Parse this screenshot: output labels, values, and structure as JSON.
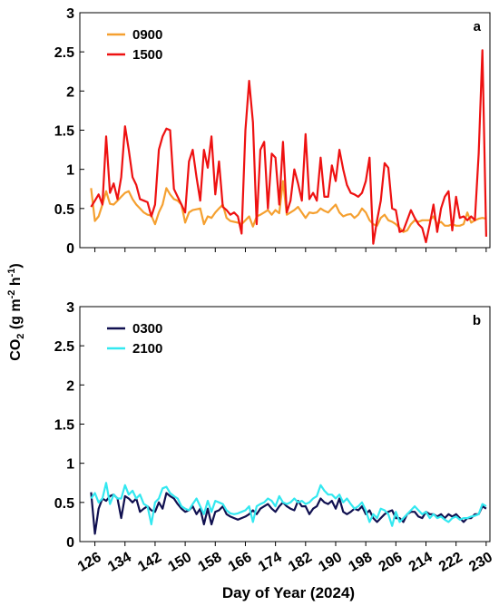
{
  "figure": {
    "ylabel_main": "CO",
    "ylabel_sub": "2",
    "ylabel_unit_open": " (g m",
    "ylabel_sup1": "-2",
    "ylabel_mid": " h",
    "ylabel_sup2": "-1",
    "ylabel_close": ")",
    "xlabel": "Day of Year (2024)"
  },
  "chart_data": [
    {
      "type": "line",
      "panel_label": "a",
      "xlim": [
        122,
        231
      ],
      "ylim": [
        0,
        3
      ],
      "yticks": [
        "0",
        "0.5",
        "1",
        "1.5",
        "2",
        "2.5",
        "3"
      ],
      "xticks": [
        126,
        134,
        142,
        150,
        158,
        166,
        174,
        182,
        190,
        198,
        206,
        214,
        222,
        230
      ],
      "legend_position": "top-left",
      "x": [
        125,
        126,
        127,
        128,
        129,
        130,
        131,
        132,
        133,
        134,
        135,
        136,
        137,
        138,
        139,
        140,
        141,
        142,
        143,
        144,
        145,
        146,
        147,
        148,
        149,
        150,
        151,
        152,
        153,
        154,
        155,
        156,
        157,
        158,
        159,
        160,
        161,
        162,
        163,
        164,
        165,
        166,
        167,
        168,
        169,
        170,
        171,
        172,
        173,
        174,
        175,
        176,
        177,
        178,
        179,
        180,
        181,
        182,
        183,
        184,
        185,
        186,
        187,
        188,
        189,
        190,
        191,
        192,
        193,
        194,
        195,
        196,
        197,
        198,
        199,
        200,
        201,
        202,
        203,
        204,
        205,
        206,
        207,
        208,
        209,
        210,
        211,
        212,
        213,
        214,
        215,
        216,
        217,
        218,
        219,
        220,
        221,
        222,
        223,
        224,
        225,
        226,
        227,
        228,
        229,
        230
      ],
      "series": [
        {
          "name": "0900",
          "color": "#f5a030",
          "values": [
            0.76,
            0.34,
            0.4,
            0.55,
            0.72,
            0.56,
            0.55,
            0.6,
            0.65,
            0.7,
            0.72,
            0.62,
            0.55,
            0.5,
            0.45,
            0.42,
            0.41,
            0.3,
            0.45,
            0.55,
            0.76,
            0.68,
            0.62,
            0.6,
            0.55,
            0.32,
            0.45,
            0.48,
            0.49,
            0.5,
            0.3,
            0.4,
            0.38,
            0.45,
            0.5,
            0.55,
            0.38,
            0.34,
            0.33,
            0.32,
            0.3,
            0.35,
            0.4,
            0.27,
            0.4,
            0.42,
            0.45,
            0.48,
            0.42,
            0.48,
            0.44,
            0.85,
            0.42,
            0.45,
            0.48,
            0.52,
            0.45,
            0.38,
            0.45,
            0.44,
            0.45,
            0.5,
            0.47,
            0.45,
            0.5,
            0.55,
            0.45,
            0.4,
            0.42,
            0.43,
            0.38,
            0.42,
            0.5,
            0.45,
            0.35,
            0.3,
            0.28,
            0.38,
            0.42,
            0.35,
            0.33,
            0.3,
            0.25,
            0.2,
            0.22,
            0.3,
            0.35,
            0.33,
            0.35,
            0.35,
            0.35,
            0.4,
            0.3,
            0.33,
            0.28,
            0.28,
            0.3,
            0.28,
            0.28,
            0.3,
            0.45,
            0.32,
            0.35,
            0.37,
            0.38,
            0.37
          ]
        },
        {
          "name": "1500",
          "color": "#ee1111",
          "values": [
            0.52,
            0.6,
            0.68,
            0.55,
            1.42,
            0.7,
            0.82,
            0.62,
            0.9,
            1.55,
            1.25,
            0.9,
            0.8,
            0.62,
            0.6,
            0.58,
            0.4,
            0.55,
            1.25,
            1.42,
            1.52,
            1.5,
            0.75,
            0.65,
            0.55,
            0.45,
            1.1,
            1.25,
            0.9,
            0.6,
            1.25,
            1.02,
            1.42,
            0.68,
            1.1,
            0.52,
            0.48,
            0.42,
            0.45,
            0.4,
            0.18,
            1.5,
            2.13,
            1.6,
            0.3,
            1.25,
            1.35,
            0.5,
            1.2,
            1.15,
            0.55,
            1.35,
            0.45,
            0.6,
            1.0,
            0.82,
            0.6,
            1.45,
            0.62,
            0.7,
            0.6,
            1.15,
            0.65,
            0.65,
            1.05,
            0.85,
            1.25,
            1.0,
            0.8,
            0.7,
            0.68,
            0.65,
            0.7,
            0.85,
            1.15,
            0.05,
            0.35,
            0.6,
            1.08,
            1.02,
            0.5,
            0.48,
            0.2,
            0.22,
            0.35,
            0.48,
            0.38,
            0.3,
            0.25,
            0.07,
            0.3,
            0.55,
            0.2,
            0.5,
            0.65,
            0.72,
            0.22,
            0.65,
            0.38,
            0.4,
            0.35,
            0.4,
            0.35,
            1.2,
            2.52,
            0.14
          ]
        }
      ]
    },
    {
      "type": "line",
      "panel_label": "b",
      "xlim": [
        122,
        231
      ],
      "ylim": [
        0,
        3
      ],
      "yticks": [
        "0",
        "0.5",
        "1",
        "1.5",
        "2",
        "2.5",
        "3"
      ],
      "xticks": [
        126,
        134,
        142,
        150,
        158,
        166,
        174,
        182,
        190,
        198,
        206,
        214,
        222,
        230
      ],
      "xticklabels": [
        "126",
        "134",
        "142",
        "150",
        "158",
        "166",
        "174",
        "182",
        "190",
        "198",
        "206",
        "214",
        "222",
        "230"
      ],
      "legend_position": "top-left",
      "x": [
        125,
        126,
        127,
        128,
        129,
        130,
        131,
        132,
        133,
        134,
        135,
        136,
        137,
        138,
        139,
        140,
        141,
        142,
        143,
        144,
        145,
        146,
        147,
        148,
        149,
        150,
        151,
        152,
        153,
        154,
        155,
        156,
        157,
        158,
        159,
        160,
        161,
        162,
        163,
        164,
        165,
        166,
        167,
        168,
        169,
        170,
        171,
        172,
        173,
        174,
        175,
        176,
        177,
        178,
        179,
        180,
        181,
        182,
        183,
        184,
        185,
        186,
        187,
        188,
        189,
        190,
        191,
        192,
        193,
        194,
        195,
        196,
        197,
        198,
        199,
        200,
        201,
        202,
        203,
        204,
        205,
        206,
        207,
        208,
        209,
        210,
        211,
        212,
        213,
        214,
        215,
        216,
        217,
        218,
        219,
        220,
        221,
        222,
        223,
        224,
        225,
        226,
        227,
        228,
        229,
        230
      ],
      "series": [
        {
          "name": "0300",
          "color": "#101050",
          "values": [
            0.63,
            0.1,
            0.42,
            0.55,
            0.52,
            0.58,
            0.6,
            0.55,
            0.3,
            0.58,
            0.55,
            0.5,
            0.55,
            0.38,
            0.42,
            0.45,
            0.4,
            0.38,
            0.5,
            0.42,
            0.62,
            0.58,
            0.55,
            0.48,
            0.42,
            0.38,
            0.4,
            0.45,
            0.35,
            0.42,
            0.22,
            0.42,
            0.22,
            0.38,
            0.4,
            0.45,
            0.35,
            0.32,
            0.3,
            0.28,
            0.3,
            0.32,
            0.35,
            0.4,
            0.35,
            0.42,
            0.45,
            0.48,
            0.42,
            0.38,
            0.45,
            0.5,
            0.45,
            0.42,
            0.4,
            0.52,
            0.45,
            0.45,
            0.35,
            0.42,
            0.45,
            0.55,
            0.5,
            0.48,
            0.52,
            0.42,
            0.55,
            0.38,
            0.35,
            0.38,
            0.42,
            0.4,
            0.45,
            0.35,
            0.4,
            0.3,
            0.25,
            0.3,
            0.35,
            0.38,
            0.4,
            0.3,
            0.3,
            0.25,
            0.35,
            0.38,
            0.38,
            0.32,
            0.3,
            0.38,
            0.35,
            0.35,
            0.32,
            0.35,
            0.3,
            0.35,
            0.32,
            0.35,
            0.3,
            0.25,
            0.3,
            0.3,
            0.35,
            0.35,
            0.45,
            0.42
          ]
        },
        {
          "name": "2100",
          "color": "#33e8f0",
          "values": [
            0.55,
            0.62,
            0.5,
            0.55,
            0.75,
            0.48,
            0.6,
            0.55,
            0.55,
            0.72,
            0.6,
            0.65,
            0.55,
            0.6,
            0.48,
            0.45,
            0.22,
            0.5,
            0.55,
            0.68,
            0.7,
            0.62,
            0.58,
            0.55,
            0.45,
            0.42,
            0.4,
            0.48,
            0.55,
            0.45,
            0.35,
            0.52,
            0.38,
            0.52,
            0.5,
            0.48,
            0.4,
            0.36,
            0.35,
            0.36,
            0.38,
            0.4,
            0.45,
            0.25,
            0.45,
            0.48,
            0.5,
            0.55,
            0.52,
            0.45,
            0.58,
            0.5,
            0.48,
            0.5,
            0.55,
            0.5,
            0.52,
            0.48,
            0.5,
            0.55,
            0.58,
            0.72,
            0.65,
            0.6,
            0.6,
            0.55,
            0.6,
            0.5,
            0.55,
            0.48,
            0.42,
            0.45,
            0.5,
            0.4,
            0.25,
            0.35,
            0.3,
            0.42,
            0.4,
            0.35,
            0.2,
            0.38,
            0.25,
            0.3,
            0.35,
            0.4,
            0.45,
            0.4,
            0.35,
            0.38,
            0.3,
            0.35,
            0.3,
            0.32,
            0.28,
            0.25,
            0.3,
            0.32,
            0.28,
            0.3,
            0.3,
            0.32,
            0.33,
            0.35,
            0.48,
            0.45
          ]
        }
      ]
    }
  ]
}
